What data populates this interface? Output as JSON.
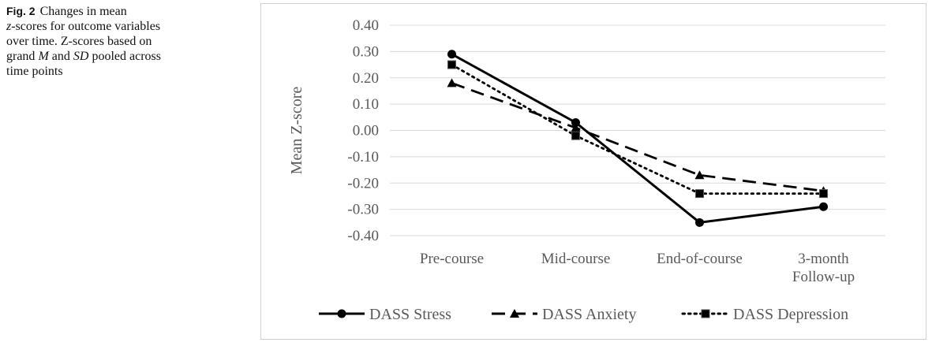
{
  "caption": {
    "label": "Fig. 2",
    "lines": [
      "Changes in mean",
      "z-scores for outcome variables",
      "over time. Z-scores based on",
      "grand M and SD pooled across",
      "time points"
    ]
  },
  "chart_data": {
    "type": "line",
    "title": "",
    "ylabel": "Mean Z-score",
    "xlabel": "",
    "ylim": [
      -0.4,
      0.4
    ],
    "y_ticks": [
      "0.40",
      "0.30",
      "0.20",
      "0.10",
      "0.00",
      "-0.10",
      "-0.20",
      "-0.30",
      "-0.40"
    ],
    "categories": [
      [
        "Pre-course"
      ],
      [
        "Mid-course"
      ],
      [
        "End-of-course"
      ],
      [
        "3-month",
        "Follow-up"
      ]
    ],
    "grid": true,
    "legend_position": "bottom",
    "series": [
      {
        "name": "DASS Stress",
        "style": "solid",
        "marker": "circle",
        "values": [
          0.29,
          0.03,
          -0.35,
          -0.29
        ],
        "color": "#000000"
      },
      {
        "name": "DASS Anxiety",
        "style": "dashed",
        "marker": "triangle",
        "values": [
          0.18,
          0.01,
          -0.17,
          -0.23
        ],
        "color": "#000000"
      },
      {
        "name": "DASS Depression",
        "style": "dotted",
        "marker": "square",
        "values": [
          0.25,
          -0.02,
          -0.24,
          -0.24
        ],
        "color": "#000000"
      }
    ]
  }
}
